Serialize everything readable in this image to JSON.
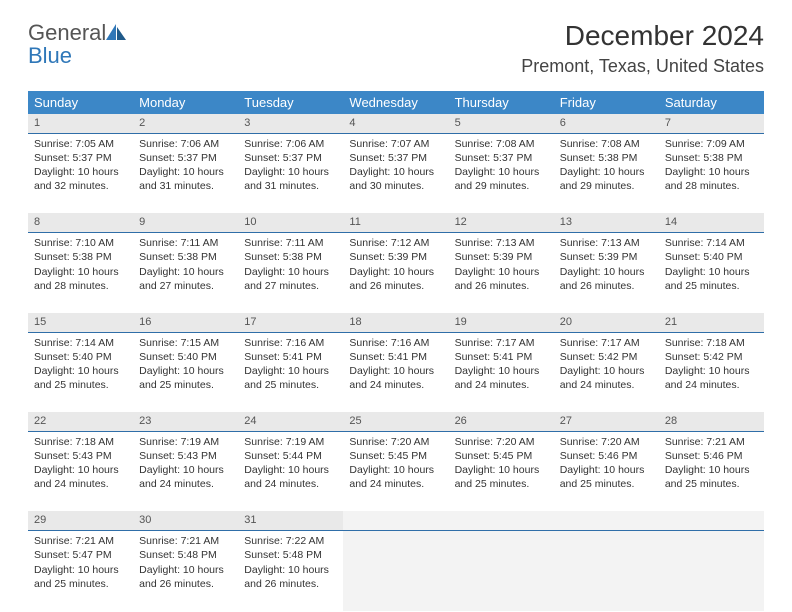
{
  "logo": {
    "general": "General",
    "blue": "Blue"
  },
  "title": "December 2024",
  "location": "Premont, Texas, United States",
  "colors": {
    "header_bg": "#3c87c7",
    "header_text": "#ffffff",
    "daynum_bg": "#e9e9e9",
    "daynum_border": "#2f6ea8",
    "logo_blue": "#2f77b8"
  },
  "weekdays": [
    "Sunday",
    "Monday",
    "Tuesday",
    "Wednesday",
    "Thursday",
    "Friday",
    "Saturday"
  ],
  "weeks": [
    [
      {
        "n": "1",
        "sr": "Sunrise: 7:05 AM",
        "ss": "Sunset: 5:37 PM",
        "d1": "Daylight: 10 hours",
        "d2": "and 32 minutes."
      },
      {
        "n": "2",
        "sr": "Sunrise: 7:06 AM",
        "ss": "Sunset: 5:37 PM",
        "d1": "Daylight: 10 hours",
        "d2": "and 31 minutes."
      },
      {
        "n": "3",
        "sr": "Sunrise: 7:06 AM",
        "ss": "Sunset: 5:37 PM",
        "d1": "Daylight: 10 hours",
        "d2": "and 31 minutes."
      },
      {
        "n": "4",
        "sr": "Sunrise: 7:07 AM",
        "ss": "Sunset: 5:37 PM",
        "d1": "Daylight: 10 hours",
        "d2": "and 30 minutes."
      },
      {
        "n": "5",
        "sr": "Sunrise: 7:08 AM",
        "ss": "Sunset: 5:37 PM",
        "d1": "Daylight: 10 hours",
        "d2": "and 29 minutes."
      },
      {
        "n": "6",
        "sr": "Sunrise: 7:08 AM",
        "ss": "Sunset: 5:38 PM",
        "d1": "Daylight: 10 hours",
        "d2": "and 29 minutes."
      },
      {
        "n": "7",
        "sr": "Sunrise: 7:09 AM",
        "ss": "Sunset: 5:38 PM",
        "d1": "Daylight: 10 hours",
        "d2": "and 28 minutes."
      }
    ],
    [
      {
        "n": "8",
        "sr": "Sunrise: 7:10 AM",
        "ss": "Sunset: 5:38 PM",
        "d1": "Daylight: 10 hours",
        "d2": "and 28 minutes."
      },
      {
        "n": "9",
        "sr": "Sunrise: 7:11 AM",
        "ss": "Sunset: 5:38 PM",
        "d1": "Daylight: 10 hours",
        "d2": "and 27 minutes."
      },
      {
        "n": "10",
        "sr": "Sunrise: 7:11 AM",
        "ss": "Sunset: 5:38 PM",
        "d1": "Daylight: 10 hours",
        "d2": "and 27 minutes."
      },
      {
        "n": "11",
        "sr": "Sunrise: 7:12 AM",
        "ss": "Sunset: 5:39 PM",
        "d1": "Daylight: 10 hours",
        "d2": "and 26 minutes."
      },
      {
        "n": "12",
        "sr": "Sunrise: 7:13 AM",
        "ss": "Sunset: 5:39 PM",
        "d1": "Daylight: 10 hours",
        "d2": "and 26 minutes."
      },
      {
        "n": "13",
        "sr": "Sunrise: 7:13 AM",
        "ss": "Sunset: 5:39 PM",
        "d1": "Daylight: 10 hours",
        "d2": "and 26 minutes."
      },
      {
        "n": "14",
        "sr": "Sunrise: 7:14 AM",
        "ss": "Sunset: 5:40 PM",
        "d1": "Daylight: 10 hours",
        "d2": "and 25 minutes."
      }
    ],
    [
      {
        "n": "15",
        "sr": "Sunrise: 7:14 AM",
        "ss": "Sunset: 5:40 PM",
        "d1": "Daylight: 10 hours",
        "d2": "and 25 minutes."
      },
      {
        "n": "16",
        "sr": "Sunrise: 7:15 AM",
        "ss": "Sunset: 5:40 PM",
        "d1": "Daylight: 10 hours",
        "d2": "and 25 minutes."
      },
      {
        "n": "17",
        "sr": "Sunrise: 7:16 AM",
        "ss": "Sunset: 5:41 PM",
        "d1": "Daylight: 10 hours",
        "d2": "and 25 minutes."
      },
      {
        "n": "18",
        "sr": "Sunrise: 7:16 AM",
        "ss": "Sunset: 5:41 PM",
        "d1": "Daylight: 10 hours",
        "d2": "and 24 minutes."
      },
      {
        "n": "19",
        "sr": "Sunrise: 7:17 AM",
        "ss": "Sunset: 5:41 PM",
        "d1": "Daylight: 10 hours",
        "d2": "and 24 minutes."
      },
      {
        "n": "20",
        "sr": "Sunrise: 7:17 AM",
        "ss": "Sunset: 5:42 PM",
        "d1": "Daylight: 10 hours",
        "d2": "and 24 minutes."
      },
      {
        "n": "21",
        "sr": "Sunrise: 7:18 AM",
        "ss": "Sunset: 5:42 PM",
        "d1": "Daylight: 10 hours",
        "d2": "and 24 minutes."
      }
    ],
    [
      {
        "n": "22",
        "sr": "Sunrise: 7:18 AM",
        "ss": "Sunset: 5:43 PM",
        "d1": "Daylight: 10 hours",
        "d2": "and 24 minutes."
      },
      {
        "n": "23",
        "sr": "Sunrise: 7:19 AM",
        "ss": "Sunset: 5:43 PM",
        "d1": "Daylight: 10 hours",
        "d2": "and 24 minutes."
      },
      {
        "n": "24",
        "sr": "Sunrise: 7:19 AM",
        "ss": "Sunset: 5:44 PM",
        "d1": "Daylight: 10 hours",
        "d2": "and 24 minutes."
      },
      {
        "n": "25",
        "sr": "Sunrise: 7:20 AM",
        "ss": "Sunset: 5:45 PM",
        "d1": "Daylight: 10 hours",
        "d2": "and 24 minutes."
      },
      {
        "n": "26",
        "sr": "Sunrise: 7:20 AM",
        "ss": "Sunset: 5:45 PM",
        "d1": "Daylight: 10 hours",
        "d2": "and 25 minutes."
      },
      {
        "n": "27",
        "sr": "Sunrise: 7:20 AM",
        "ss": "Sunset: 5:46 PM",
        "d1": "Daylight: 10 hours",
        "d2": "and 25 minutes."
      },
      {
        "n": "28",
        "sr": "Sunrise: 7:21 AM",
        "ss": "Sunset: 5:46 PM",
        "d1": "Daylight: 10 hours",
        "d2": "and 25 minutes."
      }
    ],
    [
      {
        "n": "29",
        "sr": "Sunrise: 7:21 AM",
        "ss": "Sunset: 5:47 PM",
        "d1": "Daylight: 10 hours",
        "d2": "and 25 minutes."
      },
      {
        "n": "30",
        "sr": "Sunrise: 7:21 AM",
        "ss": "Sunset: 5:48 PM",
        "d1": "Daylight: 10 hours",
        "d2": "and 26 minutes."
      },
      {
        "n": "31",
        "sr": "Sunrise: 7:22 AM",
        "ss": "Sunset: 5:48 PM",
        "d1": "Daylight: 10 hours",
        "d2": "and 26 minutes."
      },
      {
        "empty": true
      },
      {
        "empty": true
      },
      {
        "empty": true
      },
      {
        "empty": true
      }
    ]
  ]
}
